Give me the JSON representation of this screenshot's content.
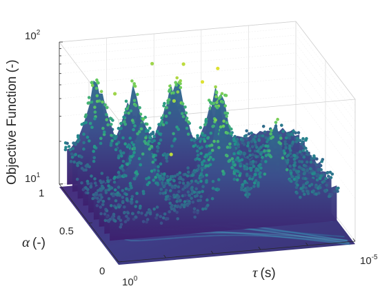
{
  "chart_data": {
    "type": "scatter",
    "subtype": "3d-scatter-with-floor-heatmap",
    "title": "",
    "zlabel": "Objective Function (-)",
    "ylabel_symbol": "α",
    "ylabel_unit": "(-)",
    "xlabel_symbol": "τ",
    "xlabel_unit": "(s)",
    "z_scale": "log",
    "z_ticks": [
      {
        "base": "10",
        "exp": "2",
        "value": 100
      },
      {
        "base": "10",
        "exp": "1",
        "value": 10
      }
    ],
    "zlim": [
      10,
      100
    ],
    "y_ticks": [
      "1",
      "0.5",
      "0"
    ],
    "ylim": [
      0,
      1
    ],
    "x_scale": "log",
    "x_ticks": [
      {
        "base": "10",
        "exp": "0",
        "value": 1
      },
      {
        "base": "10",
        "exp": "-5",
        "value": 1e-05
      }
    ],
    "xlim": [
      1e-05,
      1
    ],
    "colormap": "viridis",
    "colors": {
      "low": "#440154",
      "mid_low": "#3b528b",
      "mid": "#21918c",
      "mid_high": "#5ec962",
      "high": "#fde725",
      "floor_base": "#46307a",
      "floor_ridge": "#3a8fb0"
    },
    "grid": true,
    "legend": "none",
    "ridges": [
      {
        "alpha": 0.91,
        "tau_log": -0.7,
        "peak": 58
      },
      {
        "alpha": 0.85,
        "tau_log": -1.4,
        "peak": 46
      },
      {
        "alpha": 0.78,
        "tau_log": -2.2,
        "peak": 64
      },
      {
        "alpha": 0.62,
        "tau_log": -2.9,
        "peak": 71
      },
      {
        "alpha": 0.48,
        "tau_log": -1.1,
        "peak": 44
      },
      {
        "alpha": 0.35,
        "tau_log": -2.6,
        "peak": 52
      },
      {
        "alpha": 0.22,
        "tau_log": -3.6,
        "peak": 49
      }
    ]
  }
}
